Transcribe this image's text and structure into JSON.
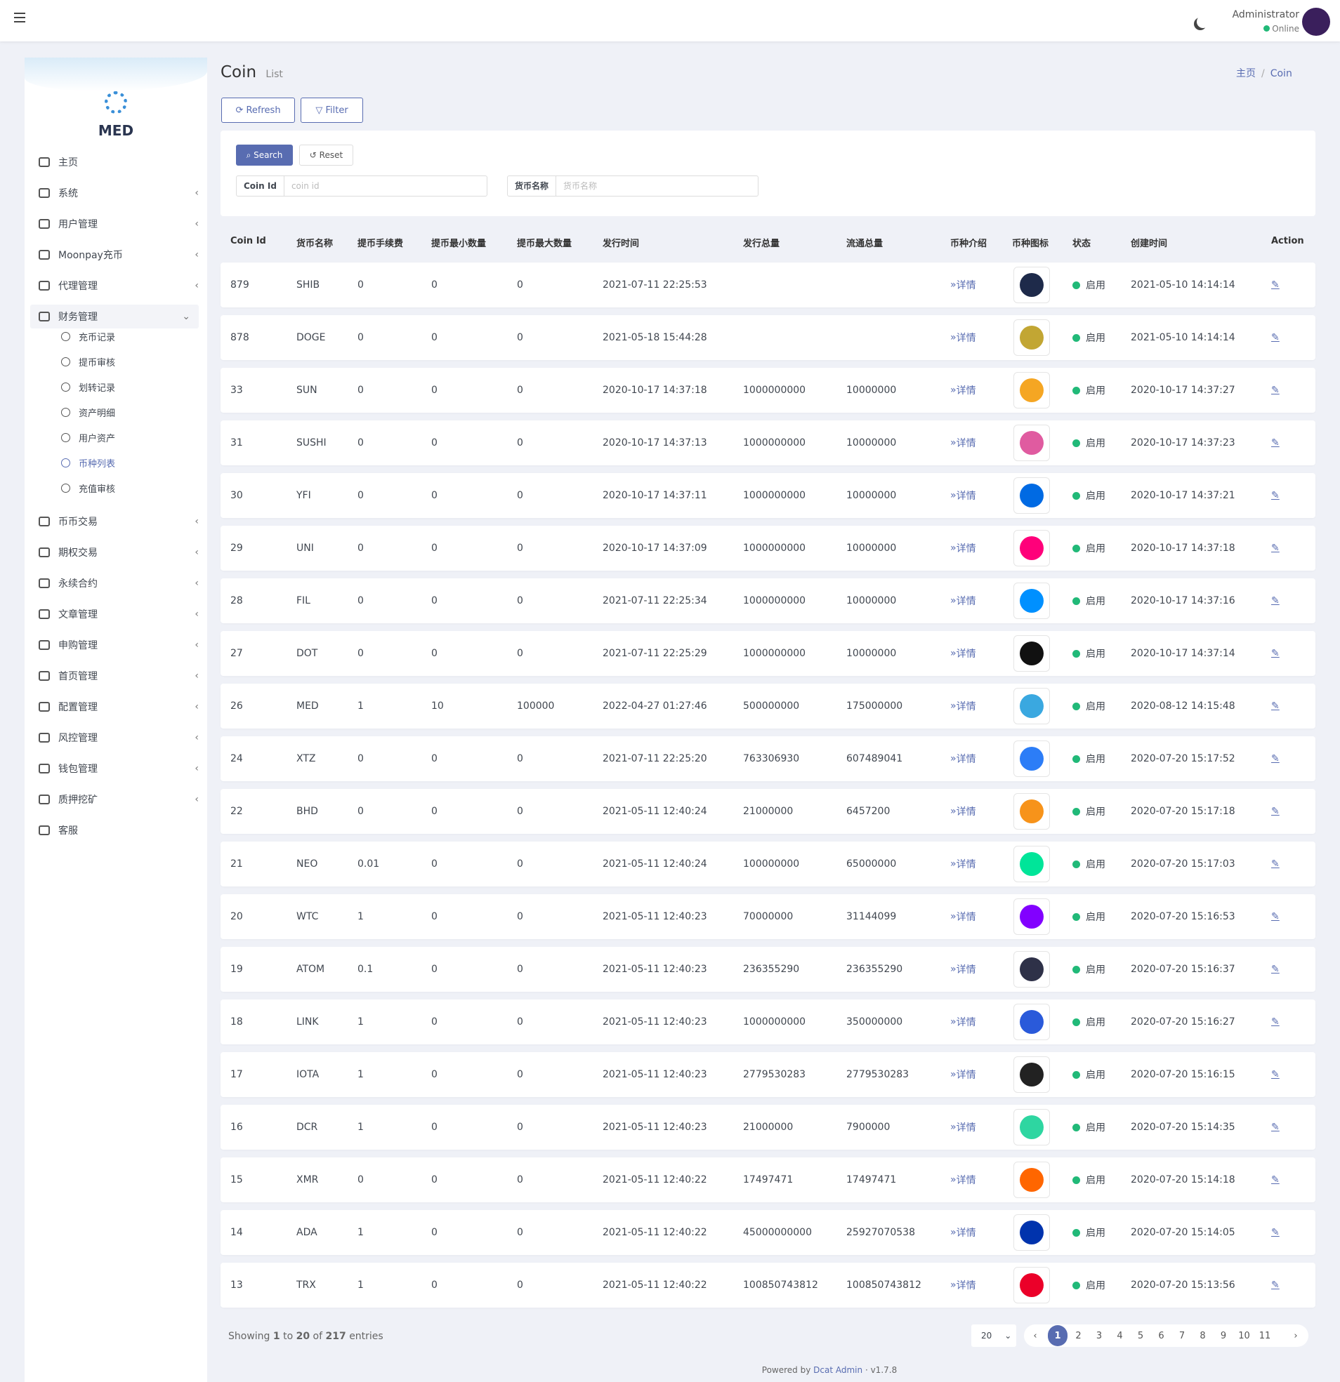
{
  "header": {
    "user": "Administrator",
    "status": "Online"
  },
  "sidebar": {
    "brand": "MED",
    "menu": [
      {
        "label": "主页"
      },
      {
        "label": "系统"
      },
      {
        "label": "用户管理"
      },
      {
        "label": "Moonpay充币"
      },
      {
        "label": "代理管理"
      },
      {
        "label": "财务管理",
        "children": [
          "充币记录",
          "提币审核",
          "划转记录",
          "资产明细",
          "用户资产",
          "币种列表",
          "充值审核"
        ]
      },
      {
        "label": "币币交易"
      },
      {
        "label": "期权交易"
      },
      {
        "label": "永续合约"
      },
      {
        "label": "文章管理"
      },
      {
        "label": "申购管理"
      },
      {
        "label": "首页管理"
      },
      {
        "label": "配置管理"
      },
      {
        "label": "风控管理"
      },
      {
        "label": "钱包管理"
      },
      {
        "label": "质押挖矿"
      },
      {
        "label": "客服"
      }
    ]
  },
  "page": {
    "title": "Coin",
    "subtitle": "List",
    "breadcrumb": [
      "主页",
      "Coin"
    ]
  },
  "toolbar": [
    "Refresh",
    "Filter"
  ],
  "filter": {
    "buttons": [
      "Search",
      "Reset"
    ],
    "fields": [
      {
        "label": "Coin Id",
        "placeholder": "coin id"
      },
      {
        "label": "货币名称",
        "placeholder": "货币名称"
      }
    ]
  },
  "table": {
    "columns": [
      "Coin Id",
      "货币名称",
      "提币手续费",
      "提币最小数量",
      "提币最大数量",
      "发行时间",
      "发行总量",
      "流通总量",
      "币种介绍",
      "币种图标",
      "状态",
      "创建时间",
      "Action"
    ],
    "rows": [
      {
        "id": 879,
        "name": "SHIB",
        "fee": 0,
        "min": 0,
        "max": 0,
        "issued": "2021-07-11 22:25:53",
        "total": null,
        "circulating": null,
        "intro": "详情",
        "status": "启用",
        "created": "2021-05-10 14:14:14"
      },
      {
        "id": 878,
        "name": "DOGE",
        "fee": 0,
        "min": 0,
        "max": 0,
        "issued": "2021-05-18 15:44:28",
        "total": null,
        "circulating": null,
        "intro": "详情",
        "status": "启用",
        "created": "2021-05-10 14:14:14"
      },
      {
        "id": 33,
        "name": "SUN",
        "fee": 0,
        "min": 0,
        "max": 0,
        "issued": "2020-10-17 14:37:18",
        "total": 1000000000,
        "circulating": 10000000,
        "intro": "详情",
        "status": "启用",
        "created": "2020-10-17 14:37:27"
      },
      {
        "id": 31,
        "name": "SUSHI",
        "fee": 0,
        "min": 0,
        "max": 0,
        "issued": "2020-10-17 14:37:13",
        "total": 1000000000,
        "circulating": 10000000,
        "intro": "详情",
        "status": "启用",
        "created": "2020-10-17 14:37:23"
      },
      {
        "id": 30,
        "name": "YFI",
        "fee": 0,
        "min": 0,
        "max": 0,
        "issued": "2020-10-17 14:37:11",
        "total": 1000000000,
        "circulating": 10000000,
        "intro": "详情",
        "status": "启用",
        "created": "2020-10-17 14:37:21"
      },
      {
        "id": 29,
        "name": "UNI",
        "fee": 0,
        "min": 0,
        "max": 0,
        "issued": "2020-10-17 14:37:09",
        "total": 1000000000,
        "circulating": 10000000,
        "intro": "详情",
        "status": "启用",
        "created": "2020-10-17 14:37:18"
      },
      {
        "id": 28,
        "name": "FIL",
        "fee": 0,
        "min": 0,
        "max": 0,
        "issued": "2021-07-11 22:25:34",
        "total": 1000000000,
        "circulating": 10000000,
        "intro": "详情",
        "status": "启用",
        "created": "2020-10-17 14:37:16"
      },
      {
        "id": 27,
        "name": "DOT",
        "fee": 0,
        "min": 0,
        "max": 0,
        "issued": "2021-07-11 22:25:29",
        "total": 1000000000,
        "circulating": 10000000,
        "intro": "详情",
        "status": "启用",
        "created": "2020-10-17 14:37:14"
      },
      {
        "id": 26,
        "name": "MED",
        "fee": 1,
        "min": 10,
        "max": 100000,
        "issued": "2022-04-27 01:27:46",
        "total": 500000000,
        "circulating": 175000000,
        "intro": "详情",
        "status": "启用",
        "created": "2020-08-12 14:15:48"
      },
      {
        "id": 24,
        "name": "XTZ",
        "fee": 0,
        "min": 0,
        "max": 0,
        "issued": "2021-07-11 22:25:20",
        "total": 763306930,
        "circulating": 607489041,
        "intro": "详情",
        "status": "启用",
        "created": "2020-07-20 15:17:52"
      },
      {
        "id": 22,
        "name": "BHD",
        "fee": 0,
        "min": 0,
        "max": 0,
        "issued": "2021-05-11 12:40:24",
        "total": 21000000,
        "circulating": 6457200,
        "intro": "详情",
        "status": "启用",
        "created": "2020-07-20 15:17:18"
      },
      {
        "id": 21,
        "name": "NEO",
        "fee": 0.01,
        "min": 0,
        "max": 0,
        "issued": "2021-05-11 12:40:24",
        "total": 100000000,
        "circulating": 65000000,
        "intro": "详情",
        "status": "启用",
        "created": "2020-07-20 15:17:03"
      },
      {
        "id": 20,
        "name": "WTC",
        "fee": 1,
        "min": 0,
        "max": 0,
        "issued": "2021-05-11 12:40:23",
        "total": 70000000,
        "circulating": 31144099,
        "intro": "详情",
        "status": "启用",
        "created": "2020-07-20 15:16:53"
      },
      {
        "id": 19,
        "name": "ATOM",
        "fee": 0.1,
        "min": 0,
        "max": 0,
        "issued": "2021-05-11 12:40:23",
        "total": 236355290,
        "circulating": 236355290,
        "intro": "详情",
        "status": "启用",
        "created": "2020-07-20 15:16:37"
      },
      {
        "id": 18,
        "name": "LINK",
        "fee": 1,
        "min": 0,
        "max": 0,
        "issued": "2021-05-11 12:40:23",
        "total": 1000000000,
        "circulating": 350000000,
        "intro": "详情",
        "status": "启用",
        "created": "2020-07-20 15:16:27"
      },
      {
        "id": 17,
        "name": "IOTA",
        "fee": 1,
        "min": 0,
        "max": 0,
        "issued": "2021-05-11 12:40:23",
        "total": 2779530283,
        "circulating": 2779530283,
        "intro": "详情",
        "status": "启用",
        "created": "2020-07-20 15:16:15"
      },
      {
        "id": 16,
        "name": "DCR",
        "fee": 1,
        "min": 0,
        "max": 0,
        "issued": "2021-05-11 12:40:23",
        "total": 21000000,
        "circulating": 7900000,
        "intro": "详情",
        "status": "启用",
        "created": "2020-07-20 15:14:35"
      },
      {
        "id": 15,
        "name": "XMR",
        "fee": 0,
        "min": 0,
        "max": 0,
        "issued": "2021-05-11 12:40:22",
        "total": 17497471,
        "circulating": 17497471,
        "intro": "详情",
        "status": "启用",
        "created": "2020-07-20 15:14:18"
      },
      {
        "id": 14,
        "name": "ADA",
        "fee": 1,
        "min": 0,
        "max": 0,
        "issued": "2021-05-11 12:40:22",
        "total": 45000000000,
        "circulating": 25927070538,
        "intro": "详情",
        "status": "启用",
        "created": "2020-07-20 15:14:05"
      },
      {
        "id": 13,
        "name": "TRX",
        "fee": 1,
        "min": 0,
        "max": 0,
        "issued": "2021-05-11 12:40:22",
        "total": 100850743812,
        "circulating": 100850743812,
        "intro": "详情",
        "status": "启用",
        "created": "2020-07-20 15:13:56"
      }
    ]
  },
  "pagination": {
    "showing": "Showing",
    "from": 1,
    "to_word": "to",
    "to": 20,
    "of_word": "of",
    "total": 217,
    "entries": "entries",
    "per_page": 20,
    "pages": [
      1,
      2,
      3,
      4,
      5,
      6,
      7,
      8,
      9,
      10,
      11
    ]
  },
  "footer": {
    "text": "Powered by",
    "link": "Dcat Admin",
    "version": "v1.7.8"
  }
}
